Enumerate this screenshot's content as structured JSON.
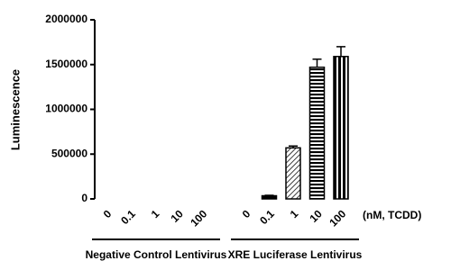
{
  "chart_data": {
    "type": "bar",
    "y_label": "Luminescence",
    "x_unit_label": "(nM, TCDD)",
    "groups": [
      "Negative Control Lentivirus",
      "XRE Luciferase Lentivirus"
    ],
    "categories": [
      "0",
      "0.1",
      "1",
      "10",
      "100",
      "0",
      "0.1",
      "1",
      "10",
      "100"
    ],
    "values": [
      0,
      0,
      0,
      0,
      0,
      0,
      35000,
      570000,
      1470000,
      1590000
    ],
    "errors": [
      0,
      0,
      0,
      0,
      0,
      0,
      5000,
      20000,
      90000,
      110000
    ],
    "patterns": [
      "solid",
      "solid",
      "solid",
      "solid",
      "solid",
      "solid",
      "solid",
      "diagonal",
      "horizontal",
      "vertical"
    ],
    "color": "#000000",
    "ylim": [
      0,
      2000000
    ],
    "yticks": [
      0,
      500000,
      1000000,
      1500000,
      2000000
    ]
  }
}
